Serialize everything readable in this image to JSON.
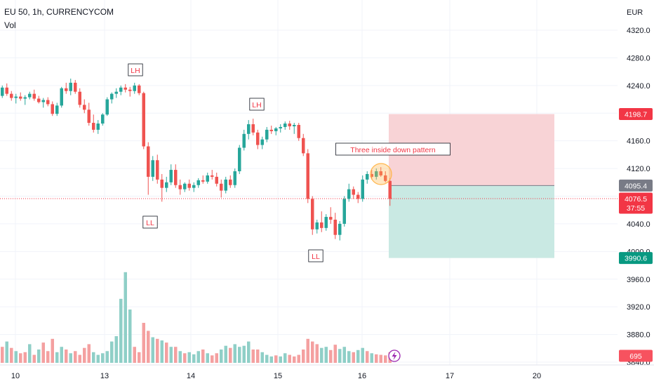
{
  "header": {
    "symbol": "EU 50, 1h, CURRENCYCOM",
    "volume_label": "Vol"
  },
  "colors": {
    "up": "#26a69a",
    "down": "#ef5350",
    "vol_up": "#8fcfc7",
    "vol_down": "#f4a0a0",
    "stop_zone": "#f8d3d6",
    "target_zone": "#c9e9e3",
    "grid": "#f0f3fa",
    "accent": "#9c27b0"
  },
  "chart_data": {
    "type": "candlestick",
    "currency": "EUR",
    "y_range": [
      3835,
      4350
    ],
    "y_ticks": [
      "4320.0",
      "4280.0",
      "4240.0",
      "4200.0",
      "4160.0",
      "4120.0",
      "4080.0",
      "4040.0",
      "4000.0",
      "3960.0",
      "3920.0",
      "3880.0",
      "3840.0"
    ],
    "x_ticks": [
      "10",
      "13",
      "14",
      "15",
      "16",
      "17",
      "20"
    ],
    "price_tags": [
      {
        "name": "stop-loss-price",
        "value": "4198.7",
        "color": "#f23645"
      },
      {
        "name": "entry-price",
        "value": "4095.4",
        "color": "#787b86"
      },
      {
        "name": "last-price",
        "value": "4076.5",
        "color": "#f23645",
        "countdown": "37:55"
      },
      {
        "name": "take-profit-price",
        "value": "3990.6",
        "color": "#089981"
      }
    ],
    "volume_tag": {
      "value": "695",
      "color": "#f7525f"
    },
    "annotations": [
      {
        "text": "LH",
        "x_bar": 30,
        "y": 4185
      },
      {
        "text": "LH",
        "x_bar": 57,
        "y": 4140
      },
      {
        "text": "LL",
        "x_bar": 33,
        "y": 4038
      },
      {
        "text": "LL",
        "x_bar": 70,
        "y": 4008
      },
      {
        "text": "Three inside down pattern",
        "x_bar": 88,
        "y": 4160
      }
    ],
    "position": {
      "type": "short",
      "entry": 4095.4,
      "stop": 4198.7,
      "target": 3990.6
    },
    "candles": [
      [
        4225,
        4240,
        4222,
        4237
      ],
      [
        4237,
        4243,
        4225,
        4228
      ],
      [
        4228,
        4232,
        4218,
        4222
      ],
      [
        4222,
        4228,
        4214,
        4224
      ],
      [
        4224,
        4230,
        4218,
        4221
      ],
      [
        4221,
        4226,
        4212,
        4223
      ],
      [
        4223,
        4231,
        4220,
        4228
      ],
      [
        4228,
        4234,
        4218,
        4221
      ],
      [
        4221,
        4225,
        4214,
        4216
      ],
      [
        4216,
        4222,
        4208,
        4219
      ],
      [
        4219,
        4223,
        4210,
        4213
      ],
      [
        4213,
        4217,
        4196,
        4199
      ],
      [
        4199,
        4215,
        4196,
        4211
      ],
      [
        4211,
        4238,
        4208,
        4236
      ],
      [
        4236,
        4244,
        4228,
        4232
      ],
      [
        4232,
        4250,
        4226,
        4244
      ],
      [
        4244,
        4248,
        4228,
        4231
      ],
      [
        4231,
        4236,
        4208,
        4212
      ],
      [
        4212,
        4220,
        4200,
        4205
      ],
      [
        4205,
        4215,
        4182,
        4186
      ],
      [
        4186,
        4198,
        4172,
        4176
      ],
      [
        4176,
        4190,
        4170,
        4185
      ],
      [
        4185,
        4200,
        4182,
        4198
      ],
      [
        4198,
        4223,
        4196,
        4220
      ],
      [
        4220,
        4230,
        4214,
        4228
      ],
      [
        4228,
        4236,
        4222,
        4231
      ],
      [
        4231,
        4240,
        4226,
        4237
      ],
      [
        4237,
        4242,
        4230,
        4234
      ],
      [
        4234,
        4238,
        4224,
        4232
      ],
      [
        4232,
        4244,
        4228,
        4240
      ],
      [
        4240,
        4242,
        4226,
        4229
      ],
      [
        4229,
        4231,
        4148,
        4152
      ],
      [
        4152,
        4158,
        4082,
        4108
      ],
      [
        4108,
        4138,
        4102,
        4132
      ],
      [
        4132,
        4140,
        4098,
        4104
      ],
      [
        4104,
        4112,
        4072,
        4092
      ],
      [
        4092,
        4108,
        4086,
        4100
      ],
      [
        4100,
        4126,
        4096,
        4118
      ],
      [
        4118,
        4126,
        4092,
        4096
      ],
      [
        4096,
        4104,
        4082,
        4090
      ],
      [
        4090,
        4100,
        4086,
        4098
      ],
      [
        4098,
        4104,
        4088,
        4092
      ],
      [
        4092,
        4100,
        4086,
        4096
      ],
      [
        4096,
        4106,
        4092,
        4103
      ],
      [
        4103,
        4110,
        4098,
        4101
      ],
      [
        4101,
        4114,
        4098,
        4110
      ],
      [
        4110,
        4118,
        4104,
        4108
      ],
      [
        4108,
        4114,
        4094,
        4098
      ],
      [
        4098,
        4104,
        4078,
        4088
      ],
      [
        4088,
        4108,
        4084,
        4104
      ],
      [
        4104,
        4110,
        4092,
        4096
      ],
      [
        4096,
        4120,
        4092,
        4116
      ],
      [
        4116,
        4154,
        4112,
        4150
      ],
      [
        4150,
        4176,
        4146,
        4170
      ],
      [
        4170,
        4190,
        4162,
        4184
      ],
      [
        4184,
        4192,
        4168,
        4172
      ],
      [
        4172,
        4176,
        4148,
        4154
      ],
      [
        4154,
        4166,
        4148,
        4162
      ],
      [
        4162,
        4180,
        4158,
        4176
      ],
      [
        4176,
        4182,
        4170,
        4174
      ],
      [
        4174,
        4180,
        4168,
        4178
      ],
      [
        4178,
        4184,
        4172,
        4180
      ],
      [
        4180,
        4188,
        4176,
        4185
      ],
      [
        4185,
        4189,
        4176,
        4181
      ],
      [
        4181,
        4186,
        4170,
        4183
      ],
      [
        4183,
        4186,
        4160,
        4164
      ],
      [
        4164,
        4170,
        4138,
        4142
      ],
      [
        4142,
        4148,
        4070,
        4076
      ],
      [
        4076,
        4080,
        4024,
        4032
      ],
      [
        4032,
        4046,
        4026,
        4042
      ],
      [
        4042,
        4058,
        4028,
        4034
      ],
      [
        4034,
        4054,
        4030,
        4050
      ],
      [
        4050,
        4064,
        4040,
        4046
      ],
      [
        4046,
        4056,
        4018,
        4024
      ],
      [
        4024,
        4044,
        4016,
        4040
      ],
      [
        4040,
        4080,
        4036,
        4076
      ],
      [
        4076,
        4098,
        4072,
        4090
      ],
      [
        4090,
        4094,
        4076,
        4082
      ],
      [
        4082,
        4086,
        4070,
        4076
      ],
      [
        4076,
        4110,
        4072,
        4104
      ],
      [
        4104,
        4116,
        4098,
        4112
      ],
      [
        4112,
        4118,
        4104,
        4108
      ],
      [
        4108,
        4120,
        4104,
        4116
      ],
      [
        4116,
        4122,
        4108,
        4110
      ],
      [
        4110,
        4116,
        4100,
        4102
      ],
      [
        4102,
        4106,
        4066,
        4076
      ]
    ],
    "volumes": [
      [
        30,
        "d"
      ],
      [
        40,
        "u"
      ],
      [
        28,
        "d"
      ],
      [
        22,
        "u"
      ],
      [
        18,
        "d"
      ],
      [
        20,
        "d"
      ],
      [
        35,
        "u"
      ],
      [
        15,
        "d"
      ],
      [
        25,
        "u"
      ],
      [
        38,
        "d"
      ],
      [
        22,
        "d"
      ],
      [
        45,
        "d"
      ],
      [
        20,
        "u"
      ],
      [
        30,
        "u"
      ],
      [
        25,
        "d"
      ],
      [
        18,
        "u"
      ],
      [
        22,
        "d"
      ],
      [
        15,
        "d"
      ],
      [
        28,
        "d"
      ],
      [
        35,
        "d"
      ],
      [
        20,
        "u"
      ],
      [
        15,
        "u"
      ],
      [
        18,
        "u"
      ],
      [
        22,
        "u"
      ],
      [
        40,
        "u"
      ],
      [
        50,
        "u"
      ],
      [
        120,
        "u"
      ],
      [
        170,
        "u"
      ],
      [
        100,
        "u"
      ],
      [
        30,
        "d"
      ],
      [
        20,
        "d"
      ],
      [
        75,
        "d"
      ],
      [
        60,
        "d"
      ],
      [
        48,
        "u"
      ],
      [
        45,
        "d"
      ],
      [
        42,
        "u"
      ],
      [
        38,
        "d"
      ],
      [
        30,
        "u"
      ],
      [
        30,
        "d"
      ],
      [
        22,
        "u"
      ],
      [
        18,
        "d"
      ],
      [
        20,
        "u"
      ],
      [
        16,
        "u"
      ],
      [
        22,
        "u"
      ],
      [
        25,
        "d"
      ],
      [
        18,
        "u"
      ],
      [
        14,
        "d"
      ],
      [
        18,
        "d"
      ],
      [
        25,
        "u"
      ],
      [
        32,
        "u"
      ],
      [
        28,
        "d"
      ],
      [
        35,
        "u"
      ],
      [
        30,
        "u"
      ],
      [
        32,
        "u"
      ],
      [
        40,
        "u"
      ],
      [
        25,
        "d"
      ],
      [
        25,
        "d"
      ],
      [
        20,
        "u"
      ],
      [
        15,
        "u"
      ],
      [
        12,
        "u"
      ],
      [
        14,
        "d"
      ],
      [
        12,
        "u"
      ],
      [
        18,
        "u"
      ],
      [
        15,
        "d"
      ],
      [
        12,
        "d"
      ],
      [
        15,
        "d"
      ],
      [
        25,
        "d"
      ],
      [
        45,
        "d"
      ],
      [
        40,
        "d"
      ],
      [
        35,
        "d"
      ],
      [
        28,
        "u"
      ],
      [
        30,
        "u"
      ],
      [
        24,
        "d"
      ],
      [
        34,
        "d"
      ],
      [
        26,
        "u"
      ],
      [
        30,
        "u"
      ],
      [
        22,
        "u"
      ],
      [
        20,
        "d"
      ],
      [
        24,
        "u"
      ],
      [
        28,
        "u"
      ],
      [
        22,
        "d"
      ],
      [
        18,
        "u"
      ],
      [
        16,
        "d"
      ],
      [
        15,
        "d"
      ],
      [
        14,
        "d"
      ],
      [
        20,
        "d"
      ]
    ]
  }
}
